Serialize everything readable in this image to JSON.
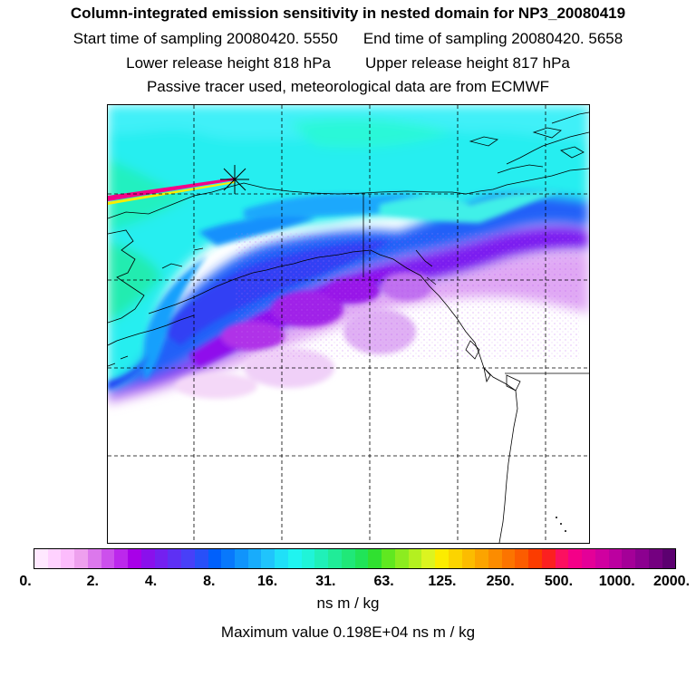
{
  "header": {
    "title": "Column-integrated emission sensitivity in nested domain for NP3_20080419",
    "start_label": "Start time of sampling 20080420.  5550",
    "end_label": "End time of sampling 20080420.  5658",
    "lower_label": "Lower release height  818 hPa",
    "upper_label": "Upper release height  817 hPa",
    "info": "Passive tracer used, meteorological data are from ECMWF"
  },
  "colorbar": {
    "colors": [
      "#ffe8ff",
      "#ffd2ff",
      "#fcbcfc",
      "#eea0ee",
      "#dc78ec",
      "#cc50ec",
      "#bc28ec",
      "#a800e8",
      "#8a10ec",
      "#7420f0",
      "#5e30f4",
      "#4840f8",
      "#2850f8",
      "#0060fc",
      "#0878fc",
      "#1094fc",
      "#18acfc",
      "#20c4fc",
      "#20e0f8",
      "#20f4f0",
      "#20f4d8",
      "#20f0b8",
      "#20ec98",
      "#20e878",
      "#20e458",
      "#30e030",
      "#60e820",
      "#8cec20",
      "#b4f020",
      "#dcf420",
      "#fcec00",
      "#fcd400",
      "#fcbc00",
      "#fca400",
      "#fc8c00",
      "#fc7400",
      "#fc5c00",
      "#fc3c00",
      "#fc2020",
      "#fc1060",
      "#f40088",
      "#e40098",
      "#d000a0",
      "#bc00a0",
      "#a40098",
      "#8c0090",
      "#740080",
      "#5c0070"
    ],
    "tick_labels": [
      "0.",
      "2.",
      "4.",
      "8.",
      "16.",
      "31.",
      "63.",
      "125.",
      "250.",
      "500.",
      "1000.",
      "2000."
    ],
    "units": "ns m / kg"
  },
  "max_value_text": "Maximum value  0.198E+04 ns m / kg",
  "map": {
    "receptor_marker": "star-marker",
    "plume_colors": {
      "background_sea": "#20e0f8",
      "cyan": "#20f4e8",
      "light_cyan": "#40ecf8",
      "blue": "#2060f8",
      "dark_blue": "#5030f0",
      "violet": "#9018ec",
      "magenta": "#cc60ec",
      "pink": "#f0c8f4",
      "hot": "#f40088",
      "yellow": "#fcec00"
    }
  }
}
